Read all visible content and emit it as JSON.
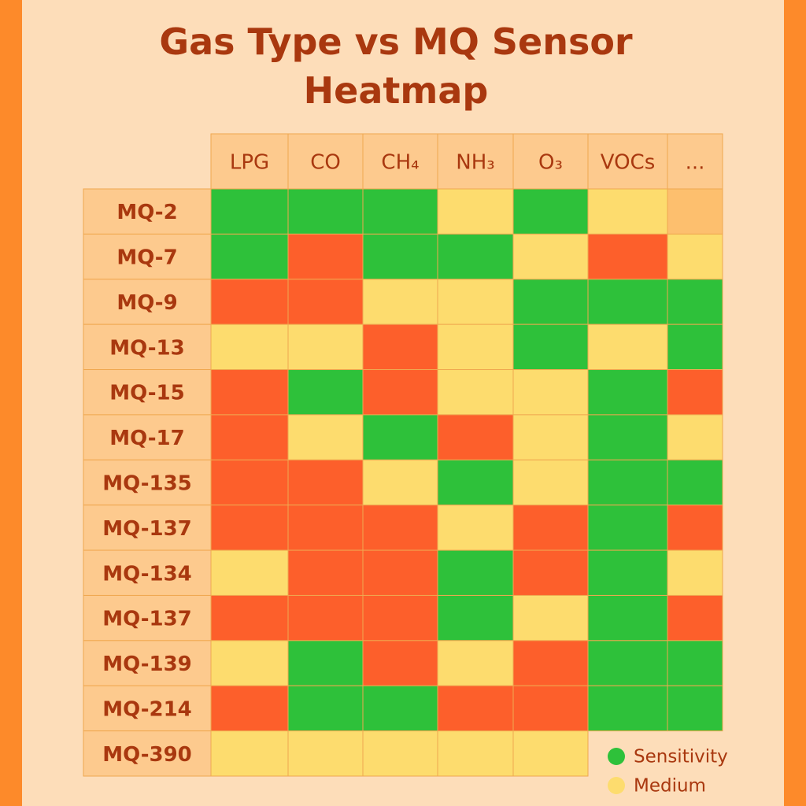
{
  "chart_data": {
    "type": "heatmap",
    "title": "Gas Type vs MQ Sensor Heatmap",
    "columns": [
      "LPG",
      "CO",
      "CH₄",
      "NH₃",
      "O₃",
      "VOCs",
      "..."
    ],
    "rows": [
      "MQ-2",
      "MQ-7",
      "MQ-9",
      "MQ-13",
      "MQ-15",
      "MQ-17",
      "MQ-135",
      "MQ-137",
      "MQ-134",
      "MQ-137",
      "MQ-139",
      "MQ-214",
      "MQ-390"
    ],
    "cells": [
      [
        "#2ec13a",
        "#2ec13a",
        "#2ec13a",
        "#fddc6e",
        "#2ec13a",
        "#fddc6e",
        "#fdbf6e"
      ],
      [
        "#2ec13a",
        "#fd5f2b",
        "#2ec13a",
        "#2ec13a",
        "#fddc6e",
        "#fd5f2b",
        "#fddc6e"
      ],
      [
        "#fd5f2b",
        "#fd5f2b",
        "#fddc6e",
        "#fddc6e",
        "#2ec13a",
        "#2ec13a",
        "#2ec13a"
      ],
      [
        "#fddc6e",
        "#fddc6e",
        "#fd5f2b",
        "#fddc6e",
        "#2ec13a",
        "#fddc6e",
        "#2ec13a"
      ],
      [
        "#fd5f2b",
        "#2ec13a",
        "#fd5f2b",
        "#fddc6e",
        "#fddc6e",
        "#2ec13a",
        "#fd5f2b"
      ],
      [
        "#fd5f2b",
        "#fddc6e",
        "#2ec13a",
        "#fd5f2b",
        "#fddc6e",
        "#2ec13a",
        "#fddc6e"
      ],
      [
        "#fd5f2b",
        "#fd5f2b",
        "#fddc6e",
        "#2ec13a",
        "#fddc6e",
        "#2ec13a",
        "#2ec13a"
      ],
      [
        "#fd5f2b",
        "#fd5f2b",
        "#fd5f2b",
        "#fddc6e",
        "#fd5f2b",
        "#2ec13a",
        "#fd5f2b"
      ],
      [
        "#fddc6e",
        "#fd5f2b",
        "#fd5f2b",
        "#2ec13a",
        "#fd5f2b",
        "#2ec13a",
        "#fddc6e"
      ],
      [
        "#fd5f2b",
        "#fd5f2b",
        "#fd5f2b",
        "#2ec13a",
        "#fddc6e",
        "#2ec13a",
        "#fd5f2b"
      ],
      [
        "#fddc6e",
        "#2ec13a",
        "#fd5f2b",
        "#fddc6e",
        "#fd5f2b",
        "#2ec13a",
        "#2ec13a"
      ],
      [
        "#fd5f2b",
        "#2ec13a",
        "#2ec13a",
        "#fd5f2b",
        "#fd5f2b",
        "#2ec13a",
        "#2ec13a"
      ],
      [
        "#fddc6e",
        "#fddc6e",
        "#fddc6e",
        "#fddc6e",
        "#fddc6e",
        null,
        null
      ]
    ],
    "legend": [
      {
        "name": "Sensitivity",
        "color": "#2ec13a"
      },
      {
        "name": "Medium",
        "color": "#fddc6e"
      }
    ]
  }
}
